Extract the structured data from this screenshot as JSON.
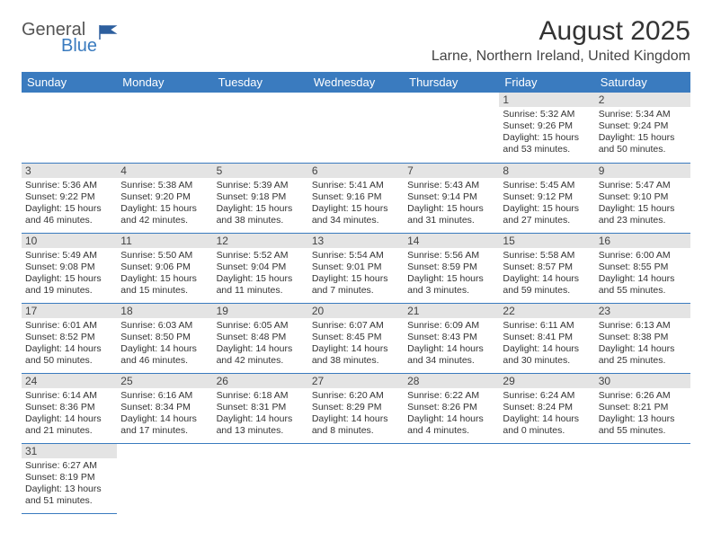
{
  "logo": {
    "general": "General",
    "blue": "Blue"
  },
  "header": {
    "title": "August 2025",
    "location": "Larne, Northern Ireland, United Kingdom"
  },
  "colors": {
    "header_bg": "#3a7bbf",
    "header_fg": "#ffffff",
    "rule": "#3a7bbf",
    "daynum_bg": "#e4e4e4"
  },
  "weekdays": [
    "Sunday",
    "Monday",
    "Tuesday",
    "Wednesday",
    "Thursday",
    "Friday",
    "Saturday"
  ],
  "cells": [
    {
      "d": "",
      "t": ""
    },
    {
      "d": "",
      "t": ""
    },
    {
      "d": "",
      "t": ""
    },
    {
      "d": "",
      "t": ""
    },
    {
      "d": "",
      "t": ""
    },
    {
      "d": "1",
      "t": "Sunrise: 5:32 AM\nSunset: 9:26 PM\nDaylight: 15 hours and 53 minutes."
    },
    {
      "d": "2",
      "t": "Sunrise: 5:34 AM\nSunset: 9:24 PM\nDaylight: 15 hours and 50 minutes."
    },
    {
      "d": "3",
      "t": "Sunrise: 5:36 AM\nSunset: 9:22 PM\nDaylight: 15 hours and 46 minutes."
    },
    {
      "d": "4",
      "t": "Sunrise: 5:38 AM\nSunset: 9:20 PM\nDaylight: 15 hours and 42 minutes."
    },
    {
      "d": "5",
      "t": "Sunrise: 5:39 AM\nSunset: 9:18 PM\nDaylight: 15 hours and 38 minutes."
    },
    {
      "d": "6",
      "t": "Sunrise: 5:41 AM\nSunset: 9:16 PM\nDaylight: 15 hours and 34 minutes."
    },
    {
      "d": "7",
      "t": "Sunrise: 5:43 AM\nSunset: 9:14 PM\nDaylight: 15 hours and 31 minutes."
    },
    {
      "d": "8",
      "t": "Sunrise: 5:45 AM\nSunset: 9:12 PM\nDaylight: 15 hours and 27 minutes."
    },
    {
      "d": "9",
      "t": "Sunrise: 5:47 AM\nSunset: 9:10 PM\nDaylight: 15 hours and 23 minutes."
    },
    {
      "d": "10",
      "t": "Sunrise: 5:49 AM\nSunset: 9:08 PM\nDaylight: 15 hours and 19 minutes."
    },
    {
      "d": "11",
      "t": "Sunrise: 5:50 AM\nSunset: 9:06 PM\nDaylight: 15 hours and 15 minutes."
    },
    {
      "d": "12",
      "t": "Sunrise: 5:52 AM\nSunset: 9:04 PM\nDaylight: 15 hours and 11 minutes."
    },
    {
      "d": "13",
      "t": "Sunrise: 5:54 AM\nSunset: 9:01 PM\nDaylight: 15 hours and 7 minutes."
    },
    {
      "d": "14",
      "t": "Sunrise: 5:56 AM\nSunset: 8:59 PM\nDaylight: 15 hours and 3 minutes."
    },
    {
      "d": "15",
      "t": "Sunrise: 5:58 AM\nSunset: 8:57 PM\nDaylight: 14 hours and 59 minutes."
    },
    {
      "d": "16",
      "t": "Sunrise: 6:00 AM\nSunset: 8:55 PM\nDaylight: 14 hours and 55 minutes."
    },
    {
      "d": "17",
      "t": "Sunrise: 6:01 AM\nSunset: 8:52 PM\nDaylight: 14 hours and 50 minutes."
    },
    {
      "d": "18",
      "t": "Sunrise: 6:03 AM\nSunset: 8:50 PM\nDaylight: 14 hours and 46 minutes."
    },
    {
      "d": "19",
      "t": "Sunrise: 6:05 AM\nSunset: 8:48 PM\nDaylight: 14 hours and 42 minutes."
    },
    {
      "d": "20",
      "t": "Sunrise: 6:07 AM\nSunset: 8:45 PM\nDaylight: 14 hours and 38 minutes."
    },
    {
      "d": "21",
      "t": "Sunrise: 6:09 AM\nSunset: 8:43 PM\nDaylight: 14 hours and 34 minutes."
    },
    {
      "d": "22",
      "t": "Sunrise: 6:11 AM\nSunset: 8:41 PM\nDaylight: 14 hours and 30 minutes."
    },
    {
      "d": "23",
      "t": "Sunrise: 6:13 AM\nSunset: 8:38 PM\nDaylight: 14 hours and 25 minutes."
    },
    {
      "d": "24",
      "t": "Sunrise: 6:14 AM\nSunset: 8:36 PM\nDaylight: 14 hours and 21 minutes."
    },
    {
      "d": "25",
      "t": "Sunrise: 6:16 AM\nSunset: 8:34 PM\nDaylight: 14 hours and 17 minutes."
    },
    {
      "d": "26",
      "t": "Sunrise: 6:18 AM\nSunset: 8:31 PM\nDaylight: 14 hours and 13 minutes."
    },
    {
      "d": "27",
      "t": "Sunrise: 6:20 AM\nSunset: 8:29 PM\nDaylight: 14 hours and 8 minutes."
    },
    {
      "d": "28",
      "t": "Sunrise: 6:22 AM\nSunset: 8:26 PM\nDaylight: 14 hours and 4 minutes."
    },
    {
      "d": "29",
      "t": "Sunrise: 6:24 AM\nSunset: 8:24 PM\nDaylight: 14 hours and 0 minutes."
    },
    {
      "d": "30",
      "t": "Sunrise: 6:26 AM\nSunset: 8:21 PM\nDaylight: 13 hours and 55 minutes."
    },
    {
      "d": "31",
      "t": "Sunrise: 6:27 AM\nSunset: 8:19 PM\nDaylight: 13 hours and 51 minutes."
    },
    {
      "d": "",
      "t": ""
    },
    {
      "d": "",
      "t": ""
    },
    {
      "d": "",
      "t": ""
    },
    {
      "d": "",
      "t": ""
    },
    {
      "d": "",
      "t": ""
    },
    {
      "d": "",
      "t": ""
    }
  ]
}
